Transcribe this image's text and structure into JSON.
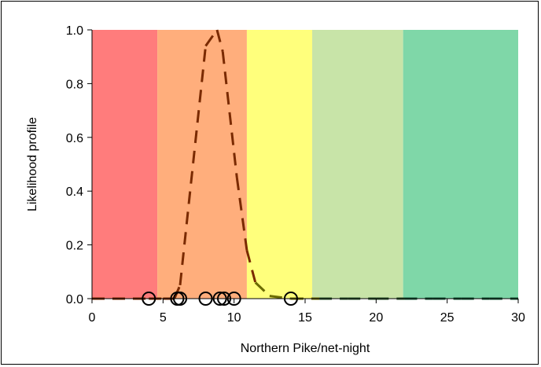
{
  "chart_data": {
    "type": "line",
    "title": "",
    "xlabel": "Northern Pike/net-night",
    "ylabel": "Likelihood profile",
    "xlim": [
      0,
      30
    ],
    "ylim": [
      0,
      1.0
    ],
    "x_ticks": [
      "0",
      "5",
      "10",
      "15",
      "20",
      "25",
      "30"
    ],
    "y_ticks": [
      "0.0",
      "0.2",
      "0.4",
      "0.6",
      "0.8",
      "1.0"
    ],
    "grid": false,
    "legend": "none",
    "bands": [
      {
        "from": 0,
        "to": 4.6,
        "color": "#ff7c7c"
      },
      {
        "from": 4.6,
        "to": 10.9,
        "color": "#ffae7c"
      },
      {
        "from": 10.9,
        "to": 15.5,
        "color": "#ffff7c"
      },
      {
        "from": 15.5,
        "to": 21.9,
        "color": "#c8e4a8"
      },
      {
        "from": 21.9,
        "to": 30,
        "color": "#7fd7a8"
      }
    ],
    "series": [
      {
        "style": "dashed",
        "x": [
          0,
          4,
          5,
          5.8,
          6.2,
          8,
          8.8,
          9.2,
          10.2,
          10.9,
          11.5,
          12.5,
          14,
          16,
          18,
          20,
          22,
          24,
          26,
          28,
          30
        ],
        "y": [
          0,
          0,
          0,
          0,
          0.05,
          0.94,
          1.0,
          0.92,
          0.45,
          0.18,
          0.06,
          0.01,
          0,
          0,
          0,
          0,
          0,
          0,
          0,
          0,
          0
        ],
        "colors": [
          "#7a2a00",
          "#7a2a00",
          "#7a2a00",
          "#7a2a00",
          "#7a2a00",
          "#7a2a00",
          "#7a2a00",
          "#7a2a00",
          "#7a2a00",
          "#7a2a00",
          "#6b6b00",
          "#6b6b00",
          "#6b6b00",
          "#2f5a2f",
          "#2f5a2f",
          "#2f5a2f",
          "#1a5a3a",
          "#1a5a3a",
          "#1a5a3a",
          "#1a5a3a",
          "#1a5a3a"
        ]
      },
      {
        "type": "scatter",
        "marker": "open-circle",
        "x": [
          4,
          6,
          6.2,
          8,
          9,
          9.3,
          10,
          14
        ],
        "y": [
          0,
          0,
          0,
          0,
          0,
          0,
          0,
          0
        ]
      }
    ]
  }
}
